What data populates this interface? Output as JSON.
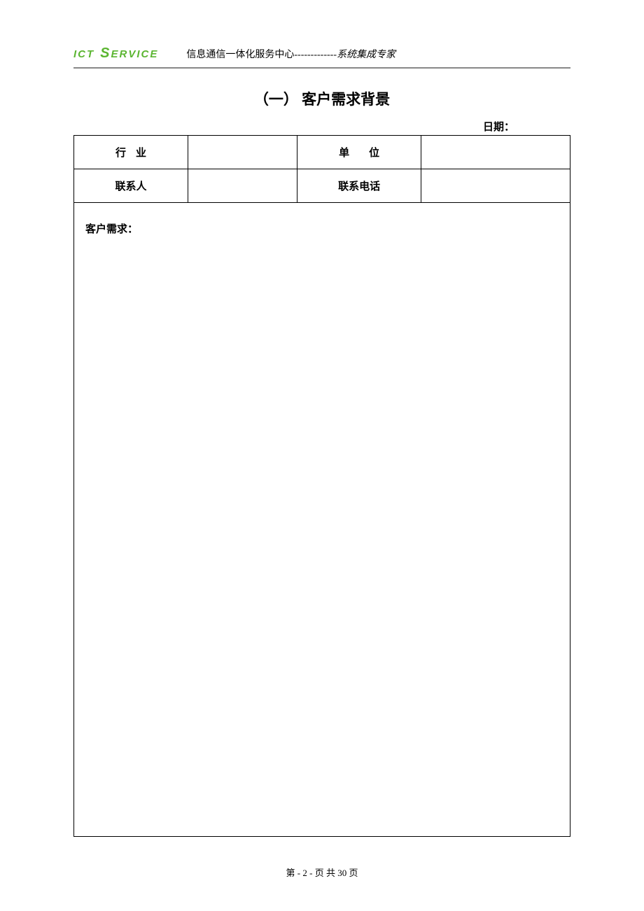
{
  "header": {
    "logo_part1": "ICT",
    "logo_part2": "S",
    "logo_part3": "ERVICE",
    "text_plain": "信息通信一体化服务中心-------------",
    "text_italic": "系统集成专家"
  },
  "section": {
    "title": "（一） 客户需求背景",
    "date_label": "日期："
  },
  "form": {
    "row1": {
      "label1": "行业",
      "value1": "",
      "label2": "单位",
      "value2": ""
    },
    "row2": {
      "label1": "联系人",
      "value1": "",
      "label2": "联系电话",
      "value2": ""
    }
  },
  "requirements": {
    "label": "客户需求：",
    "content": ""
  },
  "footer": {
    "text": "第 - 2 - 页 共 30 页"
  },
  "colors": {
    "logo_green": "#5bb531",
    "text_black": "#000000",
    "underline_gray": "#888888",
    "background": "#ffffff",
    "border": "#000000"
  }
}
